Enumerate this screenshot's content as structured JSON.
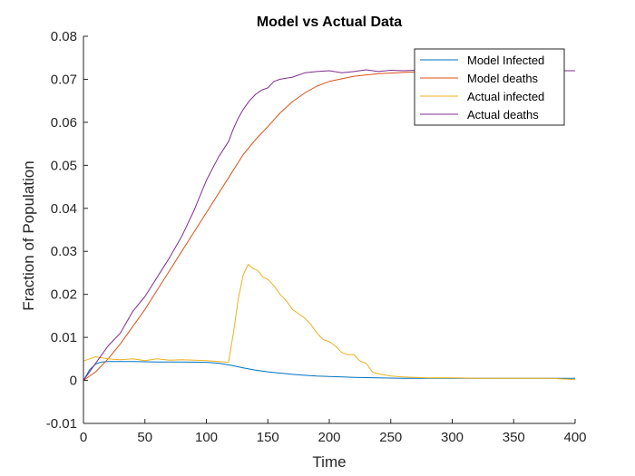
{
  "chart_data": {
    "type": "line",
    "title": "Model vs Actual Data",
    "xlabel": "Time",
    "ylabel": "Fraction of Population",
    "xlim": [
      0,
      400
    ],
    "ylim": [
      -0.01,
      0.08
    ],
    "xticks": [
      0,
      50,
      100,
      150,
      200,
      250,
      300,
      350,
      400
    ],
    "xtick_labels": [
      "0",
      "50",
      "100",
      "150",
      "200",
      "250",
      "300",
      "350",
      "400"
    ],
    "yticks": [
      -0.01,
      0,
      0.01,
      0.02,
      0.03,
      0.04,
      0.05,
      0.06,
      0.07,
      0.08
    ],
    "ytick_labels": [
      "-0.01",
      "0",
      "0.01",
      "0.02",
      "0.03",
      "0.04",
      "0.05",
      "0.06",
      "0.07",
      "0.08"
    ],
    "grid": false,
    "legend_position": "top-right",
    "series": [
      {
        "name": "Model Infected",
        "color": "#0072BD",
        "x": [
          0,
          5,
          10,
          15,
          20,
          40,
          60,
          80,
          100,
          110,
          120,
          130,
          140,
          150,
          160,
          170,
          180,
          190,
          200,
          220,
          240,
          260,
          280,
          300,
          320,
          340,
          360,
          380,
          400
        ],
        "y": [
          0.0,
          0.0025,
          0.0038,
          0.0043,
          0.0044,
          0.0044,
          0.0043,
          0.0043,
          0.0042,
          0.004,
          0.0035,
          0.0029,
          0.0024,
          0.002,
          0.0017,
          0.0014,
          0.0012,
          0.001,
          0.0009,
          0.0007,
          0.0006,
          0.0005,
          0.0005,
          0.0005,
          0.0005,
          0.0005,
          0.0005,
          0.0005,
          0.0005
        ]
      },
      {
        "name": "Model deaths",
        "color": "#D95319",
        "x": [
          0,
          10,
          20,
          30,
          40,
          50,
          60,
          70,
          80,
          90,
          100,
          110,
          120,
          130,
          140,
          150,
          160,
          170,
          180,
          190,
          200,
          220,
          240,
          260,
          280,
          300,
          320,
          340,
          360,
          380,
          400
        ],
        "y": [
          0.0,
          0.002,
          0.005,
          0.0085,
          0.0125,
          0.0165,
          0.021,
          0.0255,
          0.03,
          0.0345,
          0.039,
          0.0435,
          0.048,
          0.0525,
          0.056,
          0.059,
          0.0622,
          0.0648,
          0.0668,
          0.0684,
          0.0695,
          0.0707,
          0.0713,
          0.0716,
          0.0718,
          0.0719,
          0.072,
          0.072,
          0.072,
          0.072,
          0.072
        ]
      },
      {
        "name": "Actual infected",
        "color": "#EDB120",
        "x": [
          0,
          5,
          10,
          20,
          30,
          40,
          50,
          60,
          70,
          80,
          90,
          100,
          110,
          118,
          122,
          126,
          130,
          134,
          138,
          142,
          146,
          150,
          155,
          160,
          165,
          170,
          175,
          180,
          185,
          190,
          195,
          200,
          205,
          210,
          215,
          220,
          225,
          230,
          235,
          240,
          250,
          260,
          280,
          300,
          320,
          340,
          360,
          380,
          400
        ],
        "y": [
          0.0045,
          0.005,
          0.0055,
          0.005,
          0.0048,
          0.005,
          0.0046,
          0.005,
          0.0047,
          0.0048,
          0.0047,
          0.0046,
          0.0044,
          0.0042,
          0.011,
          0.019,
          0.0245,
          0.027,
          0.026,
          0.0255,
          0.024,
          0.0235,
          0.022,
          0.02,
          0.0185,
          0.0165,
          0.0155,
          0.0145,
          0.013,
          0.011,
          0.0095,
          0.009,
          0.008,
          0.0065,
          0.006,
          0.006,
          0.0045,
          0.004,
          0.002,
          0.0015,
          0.001,
          0.0008,
          0.0006,
          0.0006,
          0.0005,
          0.0005,
          0.0005,
          0.0005,
          0.0002
        ]
      },
      {
        "name": "Actual deaths",
        "color": "#7E2F8E",
        "x": [
          0,
          5,
          10,
          15,
          20,
          25,
          30,
          40,
          50,
          60,
          70,
          80,
          90,
          100,
          110,
          118,
          122,
          126,
          130,
          135,
          140,
          145,
          150,
          155,
          160,
          170,
          180,
          190,
          200,
          210,
          220,
          230,
          240,
          250,
          260,
          280,
          300,
          320,
          340,
          360,
          380,
          400
        ],
        "y": [
          0.0,
          0.002,
          0.004,
          0.006,
          0.008,
          0.0095,
          0.011,
          0.016,
          0.0195,
          0.024,
          0.0285,
          0.0335,
          0.0395,
          0.0465,
          0.052,
          0.0555,
          0.0585,
          0.061,
          0.063,
          0.065,
          0.0665,
          0.0675,
          0.068,
          0.0695,
          0.07,
          0.0705,
          0.0715,
          0.0718,
          0.072,
          0.0715,
          0.0718,
          0.0722,
          0.0718,
          0.0721,
          0.072,
          0.0722,
          0.072,
          0.072,
          0.072,
          0.072,
          0.072,
          0.072
        ]
      }
    ]
  }
}
